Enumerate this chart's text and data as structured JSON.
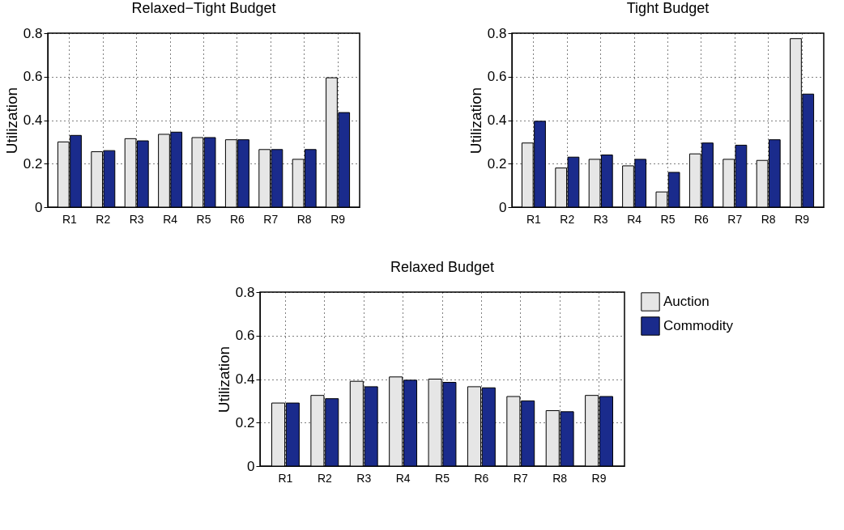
{
  "chart_data": [
    {
      "type": "bar",
      "title": "Relaxed−Tight Budget",
      "ylabel": "Utilization",
      "categories": [
        "R1",
        "R2",
        "R3",
        "R4",
        "R5",
        "R6",
        "R7",
        "R8",
        "R9"
      ],
      "ylim": [
        0,
        0.8
      ],
      "yticks": [
        0,
        0.2,
        0.4,
        0.6,
        0.8
      ],
      "grid": true,
      "series": [
        {
          "color": "#e6e6e6",
          "values": [
            0.3,
            0.255,
            0.315,
            0.335,
            0.32,
            0.31,
            0.265,
            0.22,
            0.595
          ]
        },
        {
          "color": "#1a2b8c",
          "values": [
            0.33,
            0.26,
            0.305,
            0.345,
            0.32,
            0.31,
            0.265,
            0.265,
            0.435
          ]
        }
      ]
    },
    {
      "type": "bar",
      "title": "Tight Budget",
      "ylabel": "Utilization",
      "categories": [
        "R1",
        "R2",
        "R3",
        "R4",
        "R5",
        "R6",
        "R7",
        "R8",
        "R9"
      ],
      "ylim": [
        0,
        0.8
      ],
      "yticks": [
        0,
        0.2,
        0.4,
        0.6,
        0.8
      ],
      "grid": true,
      "series": [
        {
          "color": "#e6e6e6",
          "values": [
            0.295,
            0.18,
            0.22,
            0.19,
            0.07,
            0.245,
            0.22,
            0.215,
            0.775
          ]
        },
        {
          "color": "#1a2b8c",
          "values": [
            0.395,
            0.23,
            0.24,
            0.22,
            0.16,
            0.295,
            0.285,
            0.31,
            0.52
          ]
        }
      ]
    },
    {
      "type": "bar",
      "title": "Relaxed Budget",
      "ylabel": "Utilization",
      "categories": [
        "R1",
        "R2",
        "R3",
        "R4",
        "R5",
        "R6",
        "R7",
        "R8",
        "R9"
      ],
      "ylim": [
        0,
        0.8
      ],
      "yticks": [
        0,
        0.2,
        0.4,
        0.6,
        0.8
      ],
      "grid": true,
      "legend": "right",
      "series": [
        {
          "name": "Auction",
          "color": "#e6e6e6",
          "values": [
            0.29,
            0.325,
            0.39,
            0.41,
            0.4,
            0.365,
            0.32,
            0.255,
            0.325
          ]
        },
        {
          "name": "Commodity",
          "color": "#1a2b8c",
          "values": [
            0.29,
            0.31,
            0.365,
            0.395,
            0.385,
            0.36,
            0.3,
            0.25,
            0.32
          ]
        }
      ]
    }
  ]
}
